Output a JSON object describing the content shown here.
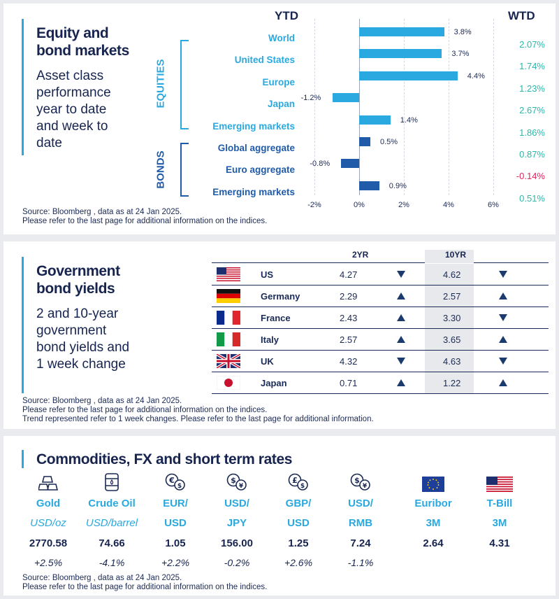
{
  "equity": {
    "title_line1": "Equity and",
    "title_line2": "bond markets",
    "subtitle_lines": [
      "Asset class",
      "performance",
      "year to date",
      "and week to",
      "date"
    ],
    "ytd_label": "YTD",
    "wtd_label": "WTD",
    "equities_label": "EQUITIES",
    "bonds_label": "BONDS",
    "source_line1": "Source: Bloomberg , data as at 24 Jan 2025.",
    "source_line2": "Please refer to the last page for additional information on the indices.",
    "colors": {
      "equity": "#2aa9e0",
      "bond": "#1f5ba8",
      "positive": "#2bb7a9",
      "negative": "#e0245e"
    }
  },
  "chart_data": {
    "type": "bar",
    "orientation": "horizontal",
    "xlabel": "",
    "ylabel": "",
    "xlim": [
      -2,
      6
    ],
    "ticks": [
      "-2%",
      "0%",
      "2%",
      "4%",
      "6%"
    ],
    "grid": true,
    "categories": [
      "World",
      "United States",
      "Europe",
      "Japan",
      "Emerging  markets",
      "Global aggregate",
      "Euro aggregate",
      "Emerging  markets"
    ],
    "groups": [
      "equity",
      "equity",
      "equity",
      "equity",
      "equity",
      "bond",
      "bond",
      "bond"
    ],
    "series": [
      {
        "name": "YTD",
        "values": [
          3.8,
          3.7,
          4.4,
          -1.2,
          1.4,
          0.5,
          -0.8,
          0.9
        ],
        "labels": [
          "3.8%",
          "3.7%",
          "4.4%",
          "-1.2%",
          "1.4%",
          "0.5%",
          "-0.8%",
          "0.9%"
        ]
      },
      {
        "name": "WTD",
        "values": [
          2.07,
          1.74,
          1.23,
          2.67,
          1.86,
          0.87,
          -0.14,
          0.51
        ],
        "labels": [
          "2.07%",
          "1.74%",
          "1.23%",
          "2.67%",
          "1.86%",
          "0.87%",
          "-0.14%",
          "0.51%"
        ]
      }
    ]
  },
  "gov": {
    "title_line1": "Government",
    "title_line2": "bond yields",
    "subtitle_lines": [
      "2 and 10-year",
      "government",
      "bond yields and",
      "1 week change"
    ],
    "col_2yr": "2YR",
    "col_10yr": "10YR",
    "rows": [
      {
        "country": "US",
        "flag": "us-flag",
        "y2": "4.27",
        "t2": "down",
        "y10": "4.62",
        "t10": "down"
      },
      {
        "country": "Germany",
        "flag": "germany-flag",
        "y2": "2.29",
        "t2": "up",
        "y10": "2.57",
        "t10": "up"
      },
      {
        "country": "France",
        "flag": "france-flag",
        "y2": "2.43",
        "t2": "up",
        "y10": "3.30",
        "t10": "down"
      },
      {
        "country": "Italy",
        "flag": "italy-flag",
        "y2": "2.57",
        "t2": "up",
        "y10": "3.65",
        "t10": "up"
      },
      {
        "country": "UK",
        "flag": "uk-flag",
        "y2": "4.32",
        "t2": "down",
        "y10": "4.63",
        "t10": "down"
      },
      {
        "country": "Japan",
        "flag": "japan-flag",
        "y2": "0.71",
        "t2": "up",
        "y10": "1.22",
        "t10": "up"
      }
    ],
    "source_line1": "Source: Bloomberg , data as at 24 Jan 2025.",
    "source_line2": "Please refer to the last page for additional information on the indices.",
    "source_line3": "Trend represented refer to 1 week changes. Please refer to the last page for additional information."
  },
  "commodities": {
    "title": "Commodities, FX and short term rates",
    "items": [
      {
        "icon": "gold-bars-icon",
        "name": "Gold",
        "unit": "USD/oz",
        "value": "2770.58",
        "change": "+2.5%"
      },
      {
        "icon": "oil-barrel-icon",
        "name": "Crude Oil",
        "unit": "USD/barrel",
        "value": "74.66",
        "change": "-4.1%"
      },
      {
        "icon": "euro-dollar-exchange-icon",
        "name": "EUR/",
        "unit": "USD",
        "value": "1.05",
        "change": "+2.2%"
      },
      {
        "icon": "dollar-yen-exchange-icon",
        "name": "USD/",
        "unit": "JPY",
        "value": "156.00",
        "change": "-0.2%"
      },
      {
        "icon": "pound-dollar-exchange-icon",
        "name": "GBP/",
        "unit": "USD",
        "value": "1.25",
        "change": "+2.6%"
      },
      {
        "icon": "dollar-yuan-exchange-icon",
        "name": "USD/",
        "unit": "RMB",
        "value": "7.24",
        "change": "-1.1%"
      },
      {
        "icon": "eu-flag-icon",
        "name": "Euribor",
        "unit": "3M",
        "value": "2.64",
        "change": ""
      },
      {
        "icon": "us-flag-icon",
        "name": "T-Bill",
        "unit": "3M",
        "value": "4.31",
        "change": ""
      }
    ],
    "source_line1": "Source: Bloomberg , data as at 24 Jan 2025.",
    "source_line2": "Please refer to the last page for additional information on the indices."
  },
  "symbols": {
    "euro": "€",
    "yen": "¥",
    "pound": "£",
    "dollar": "$"
  }
}
